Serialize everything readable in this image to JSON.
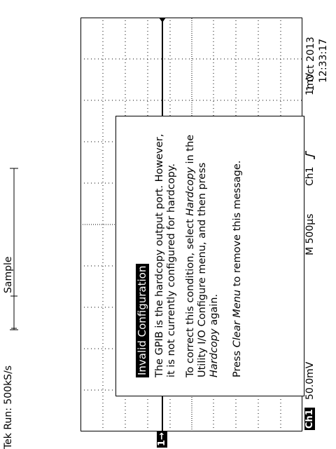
{
  "header": {
    "run_status": "Tek Run: 500kS/s",
    "mode": "Sample",
    "date": "1 Oct 2013",
    "time": "12:33:17"
  },
  "channel": {
    "marker": "1→",
    "label": "Ch1",
    "volts_div": "50.0mV"
  },
  "footer": {
    "timebase": "M 500µs",
    "trigger_source": "Ch1",
    "trigger_slope_icon": "rising-edge-icon",
    "trigger_level": "1mV"
  },
  "trigger_position_marker": "T",
  "dialog": {
    "title": "Invalid Configuration",
    "p1": "The GPIB is the hardcopy output port. However,\nit is not currently configured for hardcopy.",
    "p2_a": "To correct this condition, select ",
    "p2_hardcopy1": "Hardcopy",
    "p2_b": " in the\nUtility I/O Configure menu, and then press\n",
    "p2_hardcopy2": "Hardcopy",
    "p2_c": " again.",
    "p3_a": "Press ",
    "p3_clear": "Clear Menu",
    "p3_b": " to remove this message."
  }
}
